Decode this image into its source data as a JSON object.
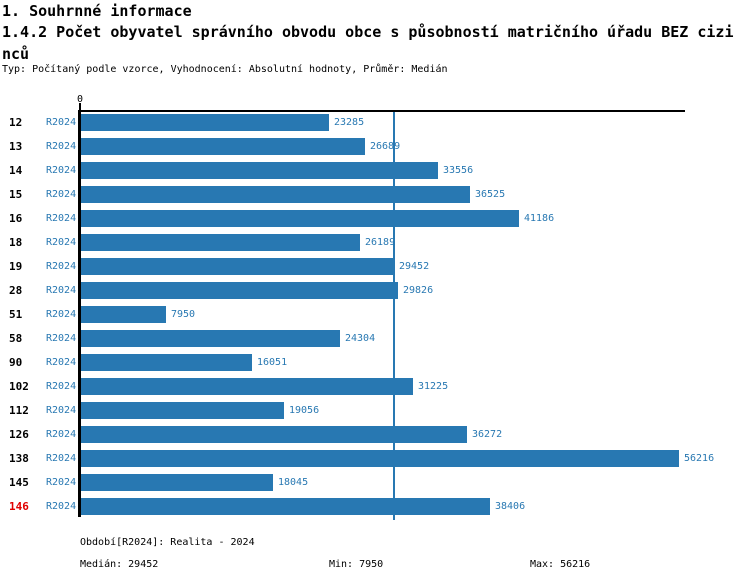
{
  "page": {
    "title_line1": "1. Souhrnné informace",
    "title_line2": "1.4.2 Počet obyvatel správního obvodu obce s působností matričního úřadu BEZ cizinců",
    "subtitle": "Typ: Počítaný podle vzorce, Vyhodnocení: Absolutní hodnoty, Průměr: Medián"
  },
  "chart_data": {
    "type": "bar",
    "orientation": "horizontal",
    "title": "1.4.2 Počet obyvatel správního obvodu obce s působností matričního úřadu BEZ cizinců",
    "series_label": "R2024",
    "categories": [
      "12",
      "13",
      "14",
      "15",
      "16",
      "18",
      "19",
      "28",
      "51",
      "58",
      "90",
      "102",
      "112",
      "126",
      "138",
      "145",
      "146"
    ],
    "values": [
      23285,
      26689,
      33556,
      36525,
      41186,
      26189,
      29452,
      29826,
      7950,
      24304,
      16051,
      31225,
      19056,
      36272,
      56216,
      18045,
      38406
    ],
    "highlighted_category": "146",
    "axis_zero_label": "0",
    "xlim": [
      0,
      56216
    ],
    "median_line_value": 29452,
    "grid": false,
    "legend": "none",
    "colors": {
      "bar": "#2878b2",
      "label_text": "#2878b2",
      "highlight": "#e00000",
      "axis": "#000000"
    }
  },
  "footer": {
    "period": "Období[R2024]: Realita - 2024",
    "median": "Medián: 29452",
    "min": "Min: 7950",
    "max": "Max: 56216"
  }
}
